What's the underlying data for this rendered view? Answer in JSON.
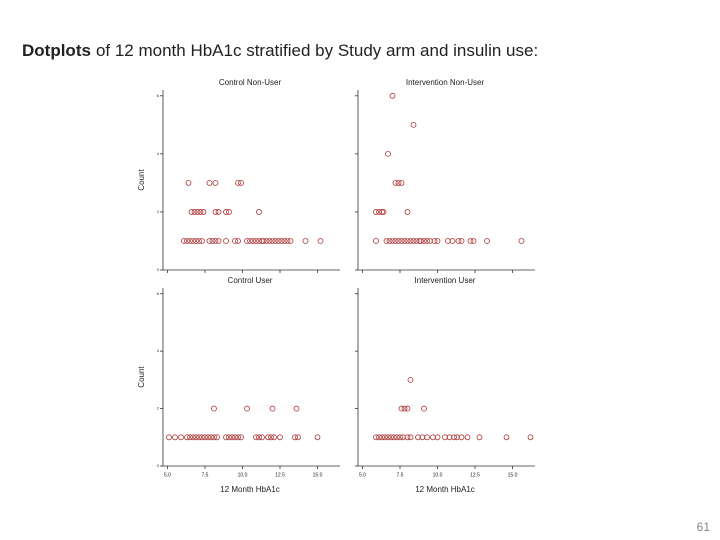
{
  "title_bold": "Dotplots",
  "title_rest": "of 12 month HbA1c stratified by Study arm and insulin use:",
  "page_number": "61",
  "chart_data": [
    {
      "type": "dotplot",
      "title": "Control Non-User",
      "ylabel": "Count",
      "color": "#b03a3a",
      "x": [
        6.1,
        6.3,
        6.5,
        6.7,
        6.9,
        7.1,
        7.3,
        7.8,
        8.0,
        8.2,
        8.4,
        8.9,
        9.5,
        9.7,
        10.3,
        10.5,
        10.7,
        10.9,
        11.1,
        11.3,
        11.4,
        11.6,
        11.8,
        12.0,
        12.2,
        12.4,
        12.6,
        12.8,
        13.0,
        13.2,
        14.2,
        15.2,
        6.6,
        6.8,
        7.0,
        7.2,
        7.4,
        8.2,
        8.4,
        8.9,
        9.1,
        11.1,
        6.4,
        7.8,
        8.2,
        9.7,
        9.9
      ],
      "values": [
        1,
        1,
        1,
        1,
        1,
        1,
        1,
        1,
        1,
        1,
        1,
        1,
        1,
        1,
        1,
        1,
        1,
        1,
        1,
        1,
        1,
        1,
        1,
        1,
        1,
        1,
        1,
        1,
        1,
        1,
        1,
        1,
        2,
        2,
        2,
        2,
        2,
        2,
        2,
        2,
        2,
        2,
        3,
        3,
        3,
        3,
        3
      ],
      "xlim": [
        4.5,
        16.5
      ],
      "xticks": [
        5,
        7.5,
        10,
        12.5,
        15
      ],
      "ylim": [
        0,
        6.2
      ],
      "yticks": [
        0,
        2,
        4,
        6
      ]
    },
    {
      "type": "dotplot",
      "title": "Intervention Non-User",
      "color": "#b03a3a",
      "x": [
        5.9,
        6.6,
        6.8,
        7.0,
        7.2,
        7.4,
        7.6,
        7.8,
        8.0,
        8.2,
        8.4,
        8.6,
        8.8,
        8.9,
        9.1,
        9.3,
        9.5,
        9.8,
        10.0,
        10.7,
        11.0,
        11.4,
        11.6,
        12.2,
        12.4,
        13.3,
        15.6,
        5.9,
        6.1,
        6.3,
        6.4,
        8.0,
        7.2,
        7.4,
        7.6,
        6.7,
        8.4,
        7.0
      ],
      "values": [
        1,
        1,
        1,
        1,
        1,
        1,
        1,
        1,
        1,
        1,
        1,
        1,
        1,
        1,
        1,
        1,
        1,
        1,
        1,
        1,
        1,
        1,
        1,
        1,
        1,
        1,
        1,
        2,
        2,
        2,
        2,
        2,
        3,
        3,
        3,
        4,
        5,
        6
      ],
      "xlim": [
        4.5,
        16.5
      ],
      "xticks": [
        5,
        7.5,
        10,
        12.5,
        15
      ],
      "ylim": [
        0,
        6.2
      ],
      "yticks": [
        0,
        2,
        4,
        6
      ]
    },
    {
      "type": "dotplot",
      "title": "Control User",
      "ylabel": "Count",
      "xlabel": "12 Month HbA1c",
      "color": "#b03a3a",
      "x": [
        5.1,
        5.5,
        5.9,
        6.3,
        6.5,
        6.7,
        6.9,
        7.1,
        7.3,
        7.5,
        7.7,
        7.9,
        8.1,
        8.3,
        8.9,
        9.1,
        9.3,
        9.5,
        9.7,
        9.9,
        10.9,
        11.1,
        11.3,
        11.7,
        11.9,
        12.1,
        12.5,
        13.5,
        13.7,
        15.0,
        8.1,
        10.3,
        12.0,
        13.6
      ],
      "values": [
        1,
        1,
        1,
        1,
        1,
        1,
        1,
        1,
        1,
        1,
        1,
        1,
        1,
        1,
        1,
        1,
        1,
        1,
        1,
        1,
        1,
        1,
        1,
        1,
        1,
        1,
        1,
        1,
        1,
        1,
        2,
        2,
        2,
        2
      ],
      "xlim": [
        4.5,
        16.5
      ],
      "xticks": [
        {
          "value": 5,
          "label": "5.0"
        },
        7.5,
        {
          "value": 10,
          "label": "10.0"
        },
        12.5,
        {
          "value": 15,
          "label": "15.0"
        }
      ],
      "ylim": [
        0,
        6.2
      ],
      "yticks": [
        0,
        2,
        4,
        6
      ]
    },
    {
      "type": "dotplot",
      "title": "Intervention User",
      "xlabel": "12 Month HbA1c",
      "color": "#b03a3a",
      "x": [
        5.9,
        6.1,
        6.3,
        6.5,
        6.7,
        6.9,
        7.1,
        7.3,
        7.5,
        7.7,
        8.0,
        8.2,
        8.7,
        9.0,
        9.3,
        9.7,
        10.0,
        10.5,
        10.8,
        11.1,
        11.3,
        11.6,
        12.0,
        12.8,
        14.6,
        16.2,
        7.6,
        7.8,
        8.0,
        9.1,
        8.2
      ],
      "values": [
        1,
        1,
        1,
        1,
        1,
        1,
        1,
        1,
        1,
        1,
        1,
        1,
        1,
        1,
        1,
        1,
        1,
        1,
        1,
        1,
        1,
        1,
        1,
        1,
        1,
        1,
        2,
        2,
        2,
        2,
        3
      ],
      "xlim": [
        4.5,
        16.5
      ],
      "xticks": [
        {
          "value": 5,
          "label": "5.0"
        },
        7.5,
        {
          "value": 10,
          "label": "10.0"
        },
        12.5,
        {
          "value": 15,
          "label": "15.0"
        }
      ],
      "ylim": [
        0,
        6.2
      ],
      "yticks": [
        0,
        2,
        4,
        6
      ]
    }
  ]
}
